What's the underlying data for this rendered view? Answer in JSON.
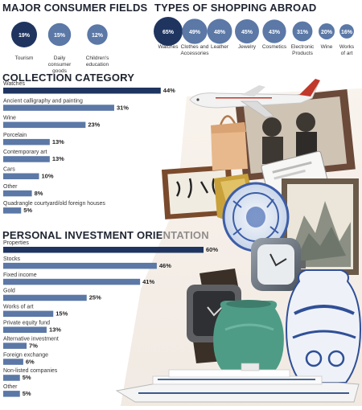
{
  "sections": {
    "consumer_fields": "MAJOR CONSUMER FIELDS",
    "shopping_abroad": "TYPES OF SHOPPING ABROAD",
    "collection": "COLLECTION CATEGORY",
    "investment": "PERSONAL INVESTMENT ORIENTATION"
  },
  "colors": {
    "bar": "#5b78a6",
    "bar_highlight": "#1f3560",
    "bubble": "#5b78a6",
    "bubble_highlight": "#1f3560",
    "heading": "#1f2430"
  },
  "illustration": [
    "airplane-image",
    "shopping-bag-image",
    "photo-frame-image",
    "calligraphy-scroll-image",
    "porcelain-plate-image",
    "painting-image",
    "wristwatch-image",
    "green-vase-image",
    "blue-white-vase-image",
    "cruise-ship-image",
    "gold-ingot-image"
  ],
  "chart_data": [
    {
      "type": "bubble",
      "title": "MAJOR CONSUMER FIELDS",
      "categories": [
        "Tourism",
        "Daily consumer goods",
        "Children's education"
      ],
      "category_lines": [
        [
          "Tourism"
        ],
        [
          "Daily",
          "consumer",
          "goods"
        ],
        [
          "Children's",
          "education"
        ]
      ],
      "values": [
        19,
        15,
        12
      ],
      "labels": [
        "19%",
        "15%",
        "12%"
      ],
      "highlight_index": 0
    },
    {
      "type": "bubble",
      "title": "TYPES OF SHOPPING ABROAD",
      "categories": [
        "Watches",
        "Clothes and Accessories",
        "Leather",
        "Jewelry",
        "Cosmetics",
        "Electronic Products",
        "Wine",
        "Works of art"
      ],
      "category_lines": [
        [
          "Watches"
        ],
        [
          "Clothes and",
          "Accessories"
        ],
        [
          "Leather"
        ],
        [
          "Jewelry"
        ],
        [
          "Cosmetics"
        ],
        [
          "Electronic",
          "Products"
        ],
        [
          "Wine"
        ],
        [
          "Works",
          "of art"
        ]
      ],
      "values": [
        65,
        49,
        48,
        45,
        43,
        31,
        20,
        16
      ],
      "labels": [
        "65%",
        "49%",
        "48%",
        "45%",
        "43%",
        "31%",
        "20%",
        "16%"
      ],
      "highlight_index": 0
    },
    {
      "type": "bar",
      "orientation": "horizontal",
      "title": "COLLECTION CATEGORY",
      "categories": [
        "Watches",
        "Ancient calligraphy and painting",
        "Wine",
        "Porcelain",
        "Contemporary art",
        "Cars",
        "Other",
        "Quadrangle courtyard/old foreign houses"
      ],
      "values": [
        44,
        31,
        23,
        13,
        13,
        10,
        8,
        5
      ],
      "labels": [
        "44%",
        "31%",
        "23%",
        "13%",
        "13%",
        "10%",
        "8%",
        "5%"
      ],
      "highlight_index": 0
    },
    {
      "type": "bar",
      "orientation": "horizontal",
      "title": "PERSONAL INVESTMENT ORIENTATION",
      "categories": [
        "Properties",
        "Stocks",
        "Fixed income",
        "Gold",
        "Works of art",
        "Private equity fund",
        "Alternative investment",
        "Foreign exchange",
        "Non-listed companies",
        "Other"
      ],
      "values": [
        60,
        46,
        41,
        25,
        15,
        13,
        7,
        6,
        5,
        5
      ],
      "labels": [
        "60%",
        "46%",
        "41%",
        "25%",
        "15%",
        "13%",
        "7%",
        "6%",
        "5%",
        "5%"
      ],
      "highlight_index": 0
    }
  ]
}
